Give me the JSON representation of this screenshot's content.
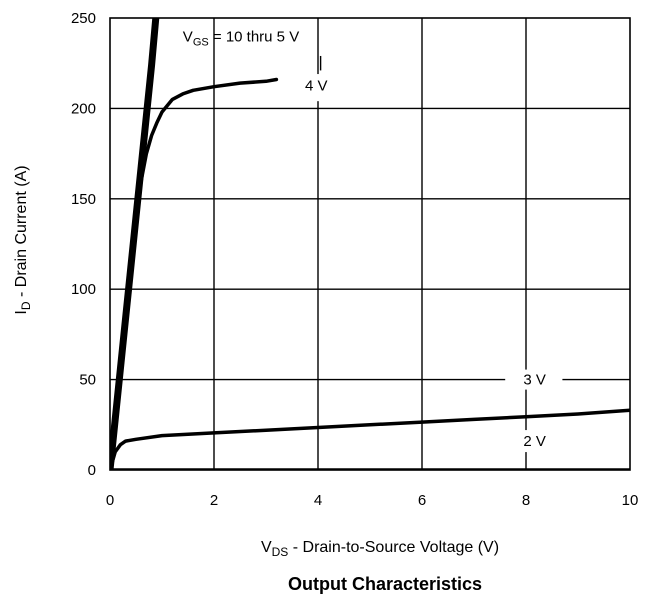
{
  "chart_data": {
    "type": "line",
    "title": "Output Characteristics",
    "xlabel": {
      "main": "V",
      "sub": "DS",
      "rest": " - Drain-to-Source Voltage (V)"
    },
    "ylabel": {
      "main": "I",
      "sub": "D",
      "rest": " - Drain Current (A)"
    },
    "xlim": [
      0,
      10
    ],
    "ylim": [
      0,
      250
    ],
    "xticks": [
      "0",
      "2",
      "4",
      "6",
      "8",
      "10"
    ],
    "yticks": [
      "0",
      "50",
      "100",
      "150",
      "200",
      "250"
    ],
    "grid": true,
    "series": [
      {
        "name": "VGS = 10 thru 5 V",
        "width": 7,
        "x": [
          0,
          0.1,
          0.2,
          0.3,
          0.4,
          0.5,
          0.6,
          0.7,
          0.8,
          0.88
        ],
        "y": [
          0,
          28,
          56,
          84,
          112,
          140,
          168,
          196,
          224,
          250
        ]
      },
      {
        "name": "4 V",
        "width": 3.5,
        "x": [
          0,
          0.2,
          0.4,
          0.5,
          0.6,
          0.7,
          0.8,
          0.9,
          1.0,
          1.2,
          1.4,
          1.6,
          2.0,
          2.5,
          3.0,
          3.2
        ],
        "y": [
          0,
          58,
          115,
          140,
          160,
          175,
          185,
          192,
          198,
          205,
          208,
          210,
          212,
          214,
          215,
          216
        ]
      },
      {
        "name": "3 V",
        "width": 3.5,
        "x": [
          0,
          0.05,
          0.1,
          0.2,
          0.3,
          0.5,
          1.0,
          2.0,
          3.0,
          4.0,
          5.0,
          6.0,
          7.0,
          8.0,
          9.0,
          10.0
        ],
        "y": [
          0,
          5,
          10,
          14,
          16,
          17,
          19,
          20.5,
          22,
          23.5,
          25,
          26.5,
          28,
          29.5,
          31,
          33
        ]
      },
      {
        "name": "2 V",
        "width": 3.5,
        "x": [
          0,
          10
        ],
        "y": [
          0,
          0
        ]
      }
    ],
    "annotations": {
      "vgs": {
        "main": "V",
        "sub": "GS",
        "rest": " = 10 thru 5 V"
      },
      "v4": "4 V",
      "v3": "3 V",
      "v2": "2 V"
    }
  }
}
